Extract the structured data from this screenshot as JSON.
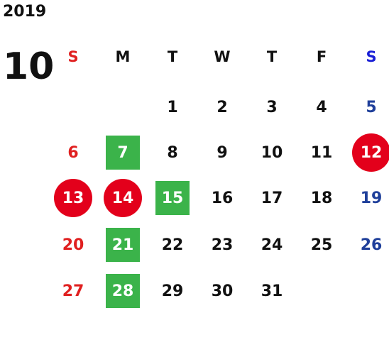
{
  "year": "2019",
  "month": "10",
  "weekdays": [
    "S",
    "M",
    "T",
    "W",
    "T",
    "F",
    "S"
  ],
  "weeks": [
    [
      "",
      "",
      "1",
      "2",
      "3",
      "4",
      "5"
    ],
    [
      "6",
      "7",
      "8",
      "9",
      "10",
      "11",
      "12"
    ],
    [
      "13",
      "14",
      "15",
      "16",
      "17",
      "18",
      "19"
    ],
    [
      "20",
      "21",
      "22",
      "23",
      "24",
      "25",
      "26"
    ],
    [
      "27",
      "28",
      "29",
      "30",
      "31",
      "",
      ""
    ]
  ],
  "highlights": {
    "red_circle": [
      "12",
      "13",
      "14"
    ],
    "green_square": [
      "7",
      "15",
      "21",
      "28"
    ]
  },
  "colors": {
    "sunday": "#e02020",
    "saturday": "#1f3f9a",
    "saturday_header": "#1a1fd6",
    "holiday_circle": "#e3001b",
    "event_square": "#3bb34a"
  }
}
